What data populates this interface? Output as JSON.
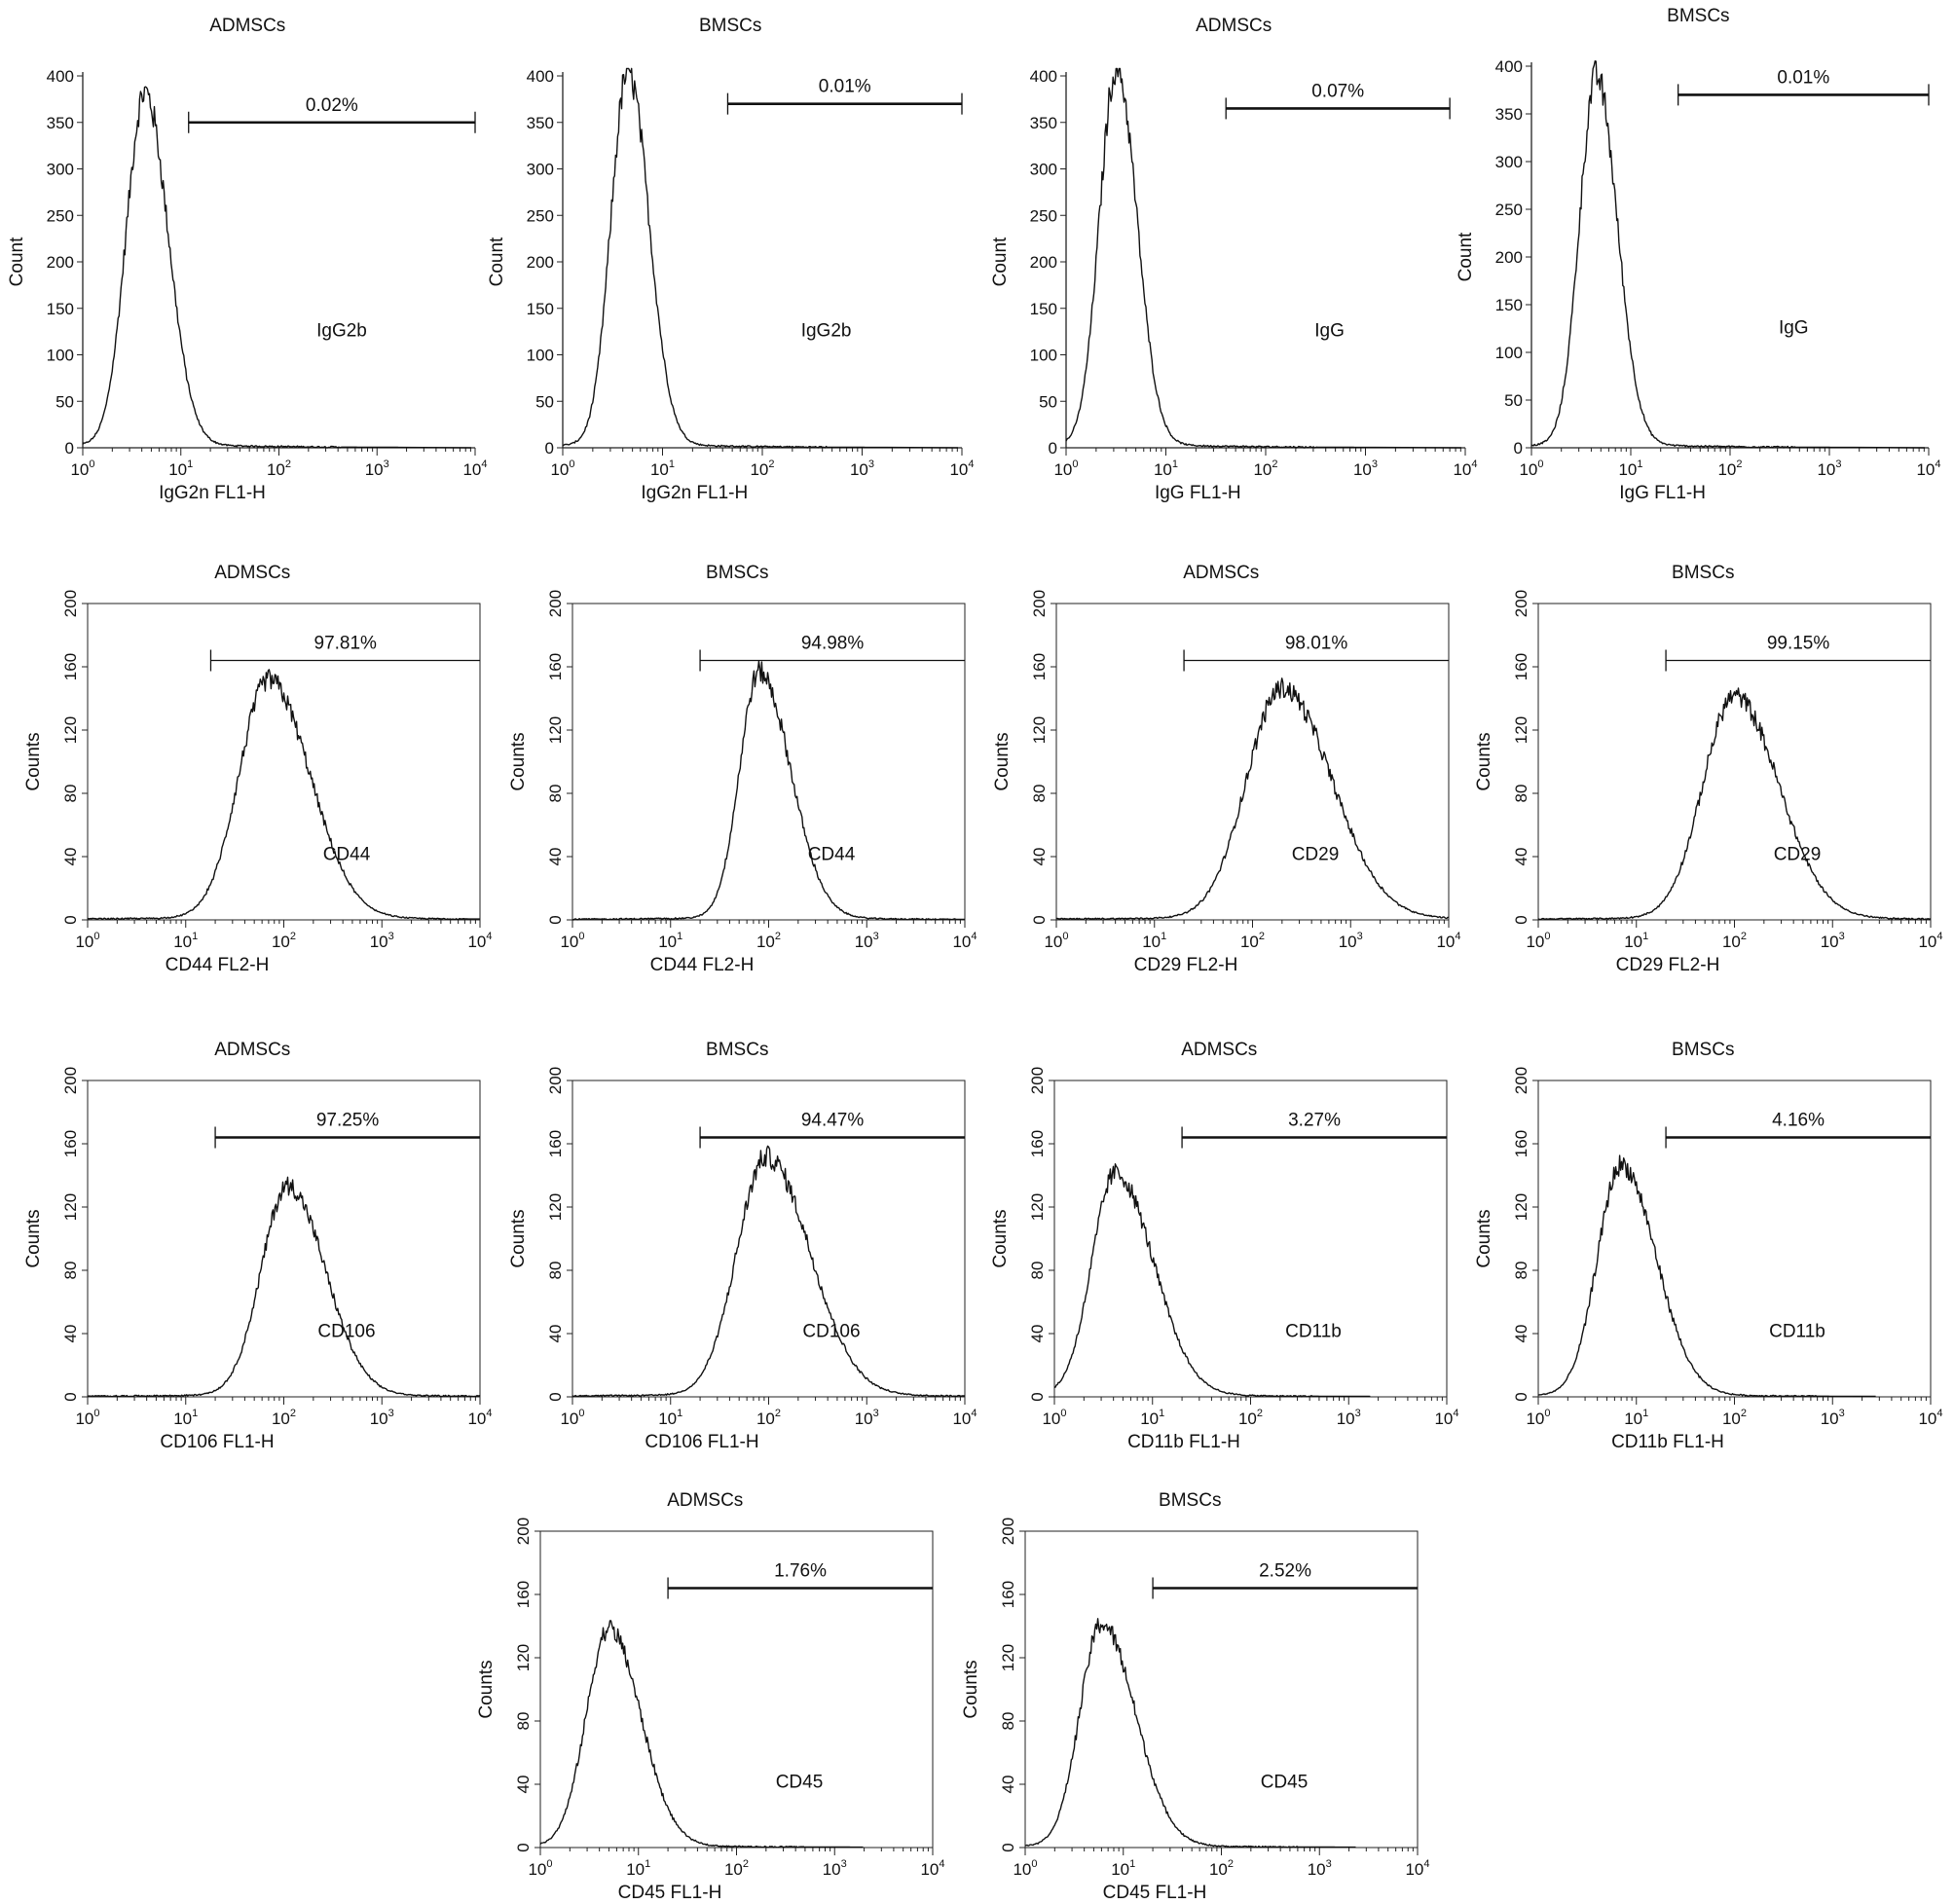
{
  "figure_title": "",
  "chart_data": [
    {
      "type": "line",
      "title": "ADMSCs",
      "xlabel": "IgG2n FL1-H",
      "ylabel": "Count",
      "xscale": "log",
      "xlim": [
        1,
        10000
      ],
      "ylim": [
        0,
        400
      ],
      "yticks": [
        0,
        50,
        100,
        150,
        200,
        250,
        300,
        350,
        400
      ],
      "frame": false,
      "marker": "IgG2b",
      "gate": {
        "label": "0.02%",
        "from": 12,
        "to": 10000,
        "y": 350,
        "thick": true
      },
      "peak": {
        "x": 4.3,
        "y": 378,
        "sigma_log": 0.19,
        "skew": 0.06
      }
    },
    {
      "type": "line",
      "title": "BMSCs",
      "xlabel": "IgG2n FL1-H",
      "ylabel": "Count",
      "xscale": "log",
      "xlim": [
        1,
        10000
      ],
      "ylim": [
        0,
        400
      ],
      "yticks": [
        0,
        50,
        100,
        150,
        200,
        250,
        300,
        350,
        400
      ],
      "frame": false,
      "marker": "IgG2b",
      "gate": {
        "label": "0.01%",
        "from": 45,
        "to": 10000,
        "y": 370,
        "thick": true
      },
      "peak": {
        "x": 4.5,
        "y": 400,
        "sigma_log": 0.17,
        "skew": 0.06
      }
    },
    {
      "type": "line",
      "title": "ADMSCs",
      "xlabel": "IgG FL1-H",
      "ylabel": "Count",
      "xscale": "log",
      "xlim": [
        1,
        10000
      ],
      "ylim": [
        0,
        400
      ],
      "yticks": [
        0,
        50,
        100,
        150,
        200,
        250,
        300,
        350,
        400
      ],
      "frame": false,
      "marker": "IgG",
      "gate": {
        "label": "0.07%",
        "from": 40,
        "to": 7000,
        "y": 365,
        "thick": true
      },
      "peak": {
        "x": 3.2,
        "y": 405,
        "sigma_log": 0.17,
        "skew": 0.05
      }
    },
    {
      "type": "line",
      "title": "BMSCs",
      "xlabel": "IgG FL1-H",
      "ylabel": "Count",
      "xscale": "log",
      "xlim": [
        1,
        10000
      ],
      "ylim": [
        0,
        400
      ],
      "yticks": [
        0,
        50,
        100,
        150,
        200,
        250,
        300,
        350,
        400
      ],
      "frame": false,
      "marker": "IgG",
      "gate": {
        "label": "0.01%",
        "from": 30,
        "to": 10000,
        "y": 370,
        "thick": true
      },
      "peak": {
        "x": 4.5,
        "y": 385,
        "sigma_log": 0.17,
        "skew": 0.06
      }
    },
    {
      "type": "line",
      "title": "ADMSCs",
      "xlabel": "CD44 FL2-H",
      "ylabel": "Counts",
      "xscale": "log",
      "xlim": [
        1,
        10000
      ],
      "ylim": [
        0,
        200
      ],
      "yticks": [
        0,
        40,
        80,
        120,
        160,
        200
      ],
      "frame": true,
      "marker": "CD44",
      "gate": {
        "label": "97.81%",
        "from": 18,
        "to": 10000,
        "y": 164,
        "thick": false
      },
      "peak": {
        "x": 70,
        "y": 150,
        "sigma_log": 0.3,
        "skew": 0.1
      }
    },
    {
      "type": "line",
      "title": "BMSCs",
      "xlabel": "CD44 FL2-H",
      "ylabel": "Counts",
      "xscale": "log",
      "xlim": [
        1,
        10000
      ],
      "ylim": [
        0,
        200
      ],
      "yticks": [
        0,
        40,
        80,
        120,
        160,
        200
      ],
      "frame": true,
      "marker": "CD44",
      "gate": {
        "label": "94.98%",
        "from": 20,
        "to": 10000,
        "y": 164,
        "thick": false
      },
      "peak": {
        "x": 80,
        "y": 155,
        "sigma_log": 0.2,
        "skew": 0.15
      }
    },
    {
      "type": "line",
      "title": "ADMSCs",
      "xlabel": "CD29 FL2-H",
      "ylabel": "Counts",
      "xscale": "log",
      "xlim": [
        1,
        10000
      ],
      "ylim": [
        0,
        200
      ],
      "yticks": [
        0,
        40,
        80,
        120,
        160,
        200
      ],
      "frame": true,
      "marker": "CD29",
      "gate": {
        "label": "98.01%",
        "from": 20,
        "to": 10000,
        "y": 164,
        "thick": false
      },
      "peak": {
        "x": 200,
        "y": 145,
        "sigma_log": 0.36,
        "skew": 0.1
      }
    },
    {
      "type": "line",
      "title": "BMSCs",
      "xlabel": "CD29 FL2-H",
      "ylabel": "Counts",
      "xscale": "log",
      "xlim": [
        1,
        10000
      ],
      "ylim": [
        0,
        200
      ],
      "yticks": [
        0,
        40,
        80,
        120,
        160,
        200
      ],
      "frame": true,
      "marker": "CD29",
      "gate": {
        "label": "99.15%",
        "from": 20,
        "to": 10000,
        "y": 164,
        "thick": false
      },
      "peak": {
        "x": 100,
        "y": 140,
        "sigma_log": 0.32,
        "skew": 0.1
      }
    },
    {
      "type": "line",
      "title": "ADMSCs",
      "xlabel": "CD106 FL1-H",
      "ylabel": "Counts",
      "xscale": "log",
      "xlim": [
        1,
        10000
      ],
      "ylim": [
        0,
        200
      ],
      "yticks": [
        0,
        40,
        80,
        120,
        160,
        200
      ],
      "frame": true,
      "marker": "CD106",
      "gate": {
        "label": "97.25%",
        "from": 20,
        "to": 10000,
        "y": 164,
        "thick": true
      },
      "peak": {
        "x": 110,
        "y": 132,
        "sigma_log": 0.27,
        "skew": 0.1
      }
    },
    {
      "type": "line",
      "title": "BMSCs",
      "xlabel": "CD106 FL1-H",
      "ylabel": "Counts",
      "xscale": "log",
      "xlim": [
        1,
        10000
      ],
      "ylim": [
        0,
        200
      ],
      "yticks": [
        0,
        40,
        80,
        120,
        160,
        200
      ],
      "frame": true,
      "marker": "CD106",
      "gate": {
        "label": "94.47%",
        "from": 20,
        "to": 10000,
        "y": 164,
        "thick": true
      },
      "peak": {
        "x": 95,
        "y": 150,
        "sigma_log": 0.3,
        "skew": 0.12
      }
    },
    {
      "type": "line",
      "title": "ADMSCs",
      "xlabel": "CD11b FL1-H",
      "ylabel": "Counts",
      "xscale": "log",
      "xlim": [
        1,
        10000
      ],
      "ylim": [
        0,
        200
      ],
      "yticks": [
        0,
        40,
        80,
        120,
        160,
        200
      ],
      "frame": true,
      "marker": "CD11b",
      "gate": {
        "label": "3.27%",
        "from": 20,
        "to": 10000,
        "y": 164,
        "thick": true
      },
      "peak": {
        "x": 4.2,
        "y": 140,
        "sigma_log": 0.24,
        "skew": 0.15
      }
    },
    {
      "type": "line",
      "title": "BMSCs",
      "xlabel": "CD11b FL1-H",
      "ylabel": "Counts",
      "xscale": "log",
      "xlim": [
        1,
        10000
      ],
      "ylim": [
        0,
        200
      ],
      "yticks": [
        0,
        40,
        80,
        120,
        160,
        200
      ],
      "frame": true,
      "marker": "CD11b",
      "gate": {
        "label": "4.16%",
        "from": 20,
        "to": 10000,
        "y": 164,
        "thick": true
      },
      "peak": {
        "x": 7,
        "y": 145,
        "sigma_log": 0.24,
        "skew": 0.12
      }
    },
    {
      "type": "line",
      "title": "ADMSCs",
      "xlabel": "CD45 FL1-H",
      "ylabel": "Counts",
      "xscale": "log",
      "xlim": [
        1,
        10000
      ],
      "ylim": [
        0,
        200
      ],
      "yticks": [
        0,
        40,
        80,
        120,
        160,
        200
      ],
      "frame": true,
      "marker": "CD45",
      "gate": {
        "label": "1.76%",
        "from": 20,
        "to": 10000,
        "y": 164,
        "thick": true
      },
      "peak": {
        "x": 5,
        "y": 137,
        "sigma_log": 0.23,
        "skew": 0.1
      }
    },
    {
      "type": "line",
      "title": "BMSCs",
      "xlabel": "CD45 FL1-H",
      "ylabel": "Counts",
      "xscale": "log",
      "xlim": [
        1,
        10000
      ],
      "ylim": [
        0,
        200
      ],
      "yticks": [
        0,
        40,
        80,
        120,
        160,
        200
      ],
      "frame": true,
      "marker": "CD45",
      "gate": {
        "label": "2.52%",
        "from": 20,
        "to": 10000,
        "y": 164,
        "thick": true
      },
      "peak": {
        "x": 6,
        "y": 140,
        "sigma_log": 0.22,
        "skew": 0.14
      }
    }
  ]
}
